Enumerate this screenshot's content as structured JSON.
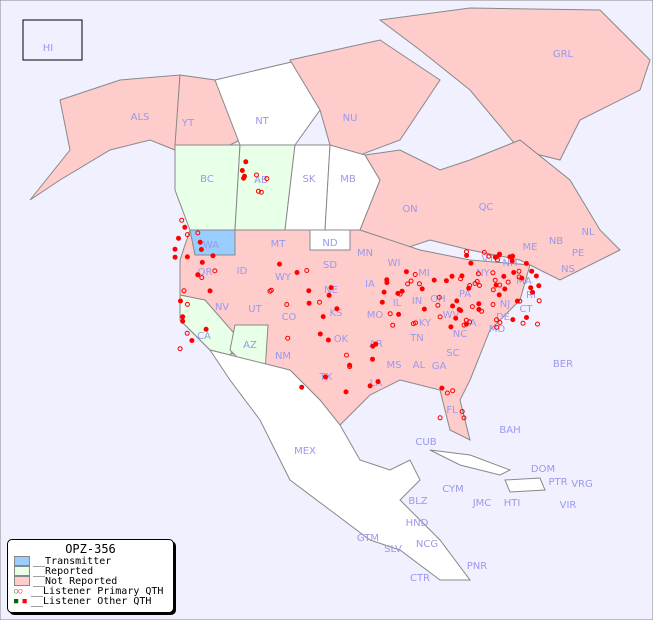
{
  "map": {
    "colors": {
      "background": "#f0f0ff",
      "transmitter": "#99ccff",
      "reported": "#e8ffe8",
      "not_reported": "#ffcccc",
      "none": "#ffffff",
      "dot": "#ff0000",
      "dot_green": "#006600"
    },
    "labels": [
      "HI",
      "ALS",
      "YT",
      "NT",
      "NU",
      "GRL",
      "BC",
      "AB",
      "SK",
      "MB",
      "ON",
      "QC",
      "NL",
      "NS",
      "WA",
      "OR",
      "CA",
      "NV",
      "ID",
      "MT",
      "WY",
      "UT",
      "AZ",
      "CO",
      "NM",
      "ND",
      "SD",
      "NE",
      "KS",
      "OK",
      "TX",
      "MN",
      "IA",
      "MO",
      "AR",
      "LA",
      "WI",
      "IL",
      "MI",
      "IN",
      "OH",
      "KY",
      "TN",
      "MS",
      "AL",
      "GA",
      "FL",
      "SC",
      "NC",
      "VA",
      "WV",
      "PA",
      "NY",
      "MD",
      "DE",
      "NJ",
      "CT",
      "RI",
      "MA",
      "VT",
      "NH",
      "ME",
      "NB",
      "PE",
      "BER",
      "BAH",
      "CUB",
      "CYM",
      "JMC",
      "HTI",
      "DOM",
      "PTR",
      "VRG",
      "VIR",
      "MEX",
      "BLZ",
      "GTM",
      "HND",
      "SLV",
      "NCG",
      "CTR",
      "PNR"
    ]
  },
  "legend": {
    "title": "OPZ-356",
    "items": [
      "__Transmitter",
      "__Reported",
      "__Not Reported",
      "__Listener Primary QTH",
      "__Listener Other QTH"
    ]
  }
}
